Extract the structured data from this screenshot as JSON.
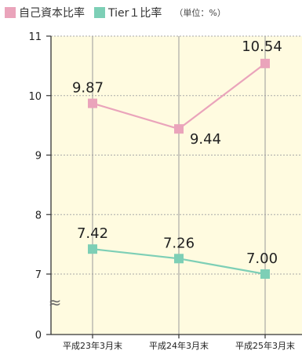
{
  "legend": {
    "items": [
      {
        "label": "自己資本比率",
        "color": "#eaa4bb"
      },
      {
        "label": "Tier１比率",
        "color": "#7dcfb6"
      }
    ],
    "unit": "（単位：%）"
  },
  "chart_data": {
    "type": "line",
    "categories": [
      "平成23年3月末",
      "平成24年3月末",
      "平成25年3月末"
    ],
    "series": [
      {
        "name": "自己資本比率",
        "values": [
          9.87,
          9.44,
          10.54
        ],
        "labels": [
          "9.87",
          "9.44",
          "10.54"
        ],
        "color": "#eaa4bb"
      },
      {
        "name": "Tier１比率",
        "values": [
          7.42,
          7.26,
          7.0
        ],
        "labels": [
          "7.42",
          "7.26",
          "7.00"
        ],
        "color": "#7dcfb6"
      }
    ],
    "yticks": [
      "0",
      "7",
      "8",
      "9",
      "10",
      "11"
    ],
    "ylim": [
      0,
      11
    ],
    "axis_break": "≈",
    "grid": true,
    "legend_position": "top-left",
    "background": "#fffbe0"
  }
}
